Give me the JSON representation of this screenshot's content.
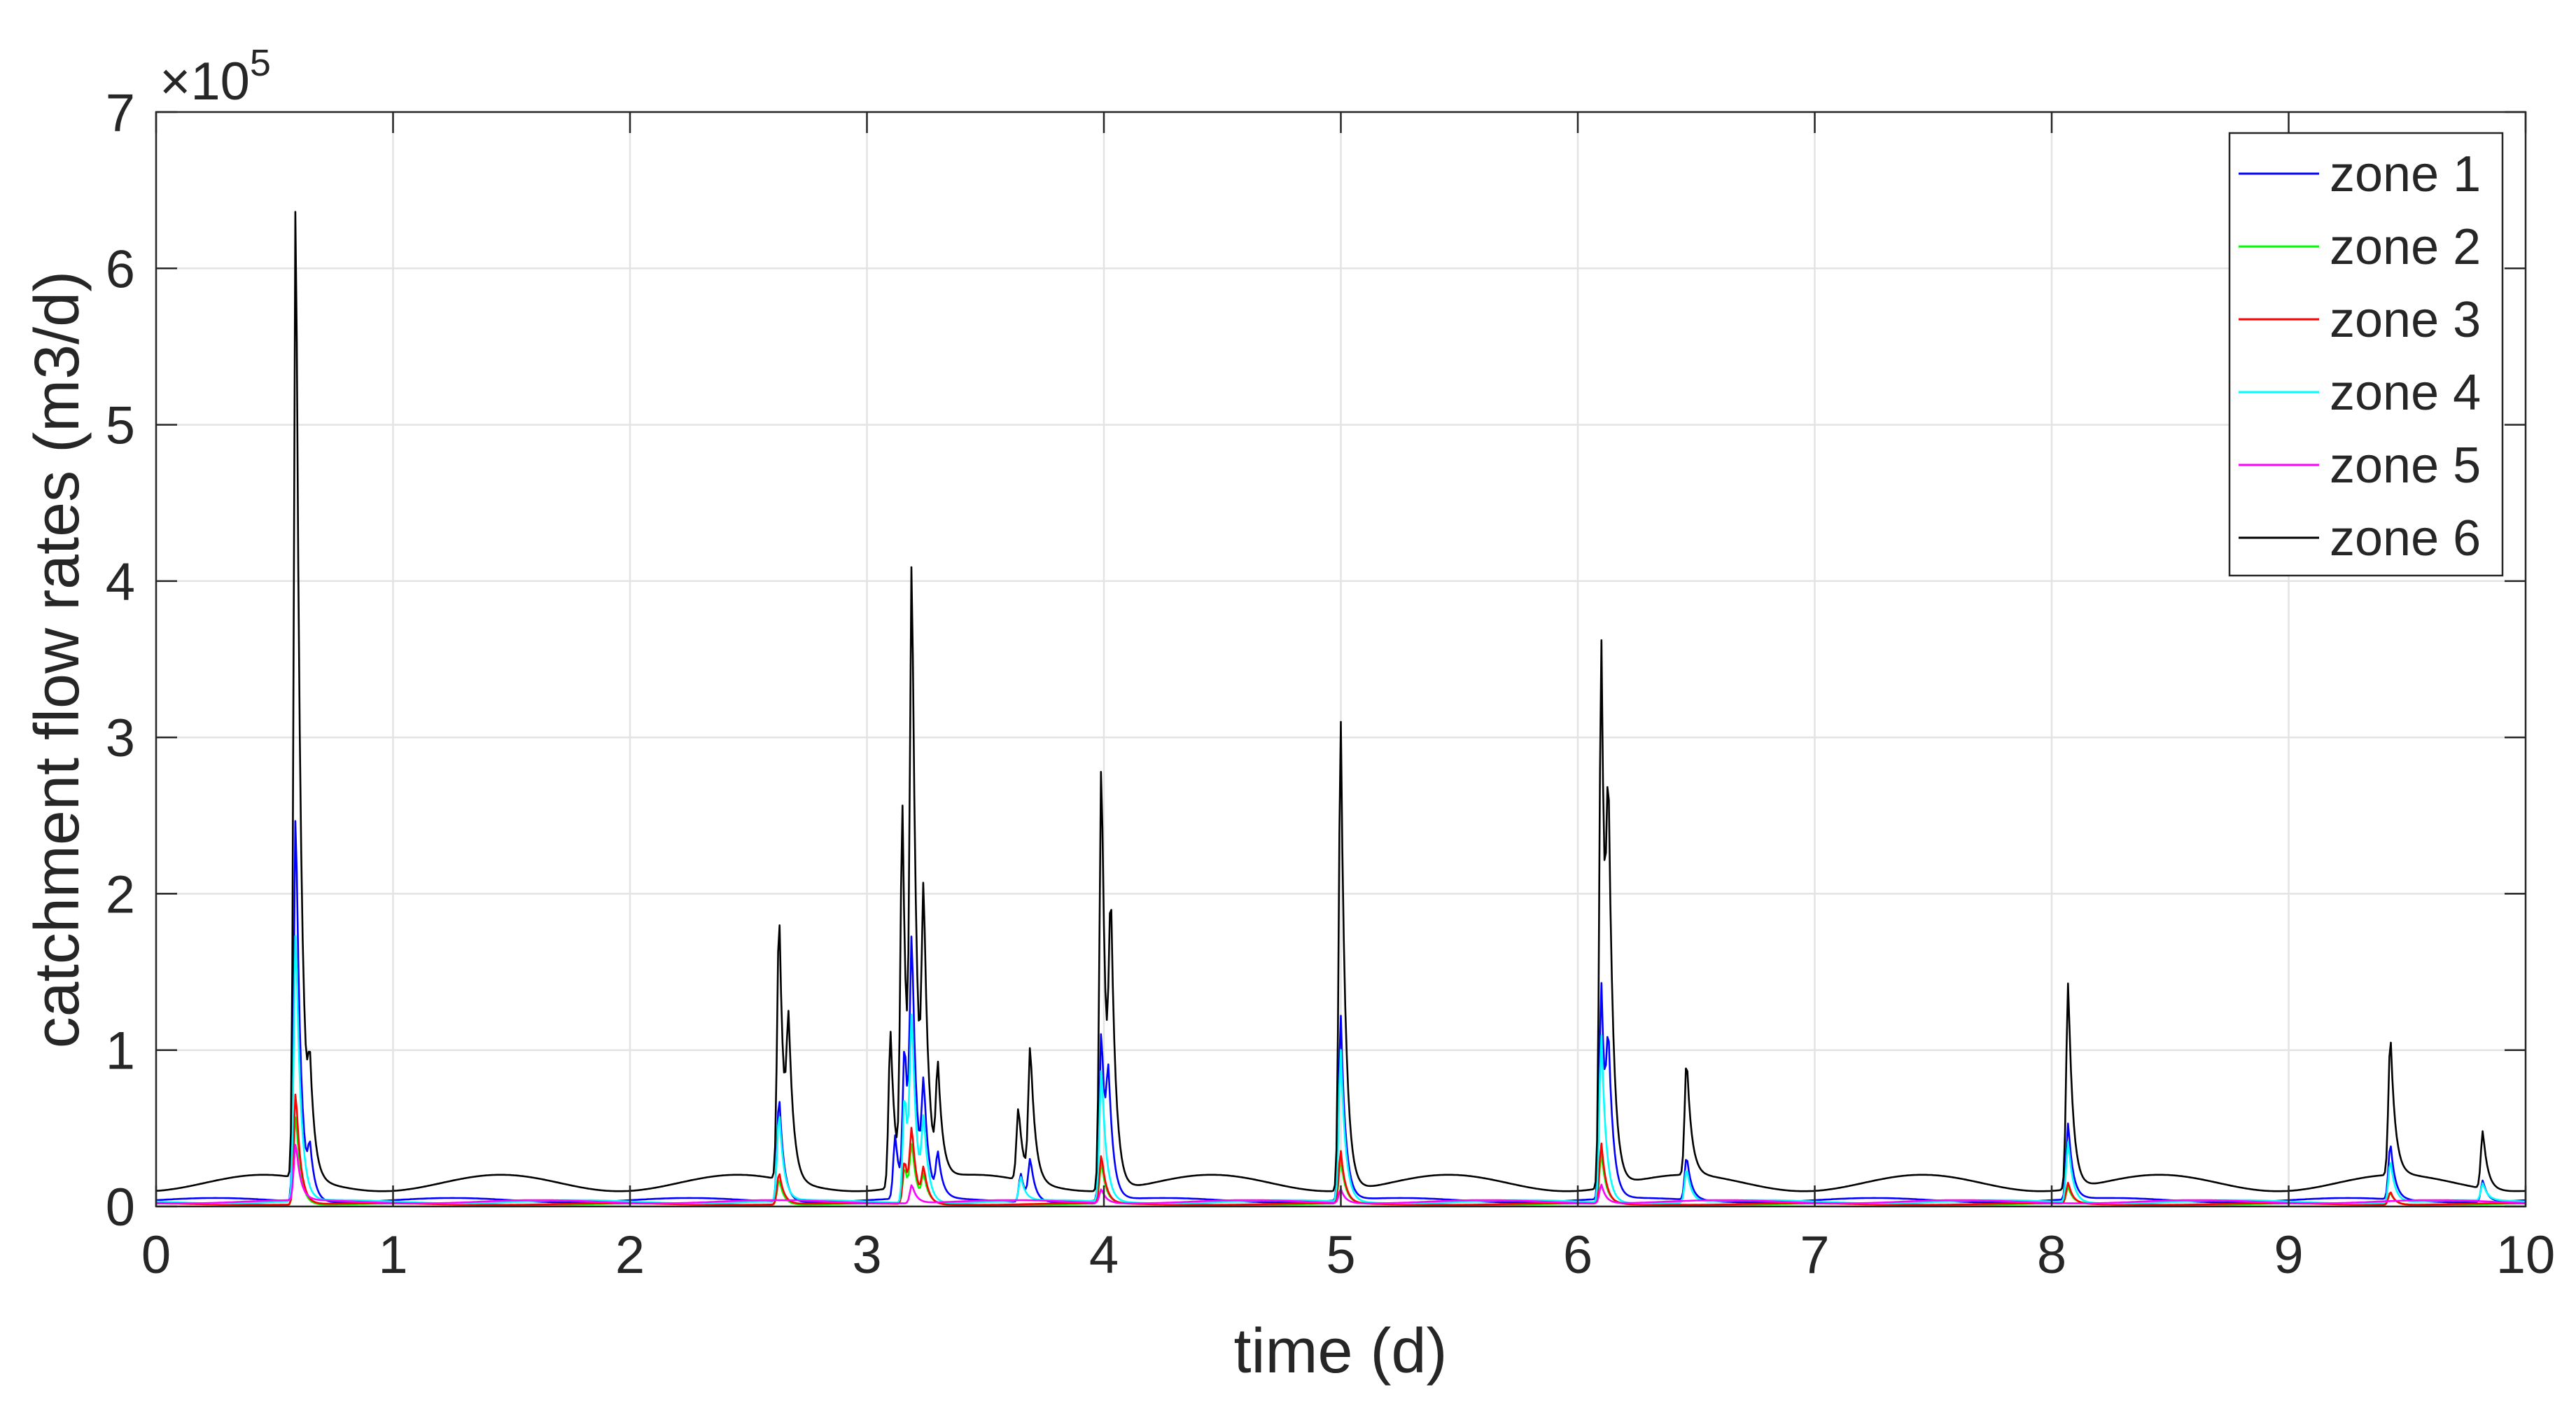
{
  "chart_data": {
    "type": "line",
    "xlabel": "time (d)",
    "ylabel": "catchment flow rates (m3/d)",
    "xlim": [
      0,
      10
    ],
    "ylim": [
      0,
      700000
    ],
    "xticks": [
      "0",
      "1",
      "2",
      "3",
      "4",
      "5",
      "6",
      "7",
      "8",
      "9",
      "10"
    ],
    "yticks": [
      "0",
      "1",
      "2",
      "3",
      "4",
      "5",
      "6",
      "7"
    ],
    "y_exponent": {
      "base": "×10",
      "power": "5"
    },
    "grid": true,
    "legend_position": "top-right",
    "colors": {
      "zone1": "#0000ff",
      "zone2": "#00ff00",
      "zone3": "#ff0000",
      "zone4": "#00ffff",
      "zone5": "#ff00ff",
      "zone6": "#000000"
    },
    "series": [
      {
        "name": "zone 1",
        "color": "#0000ff",
        "baseline": 4000,
        "peaks": [
          [
            0.59,
            258000
          ],
          [
            0.65,
            30000
          ],
          [
            2.63,
            72000
          ],
          [
            3.12,
            45000
          ],
          [
            3.16,
            100000
          ],
          [
            3.19,
            152000
          ],
          [
            3.24,
            68000
          ],
          [
            3.3,
            30000
          ],
          [
            3.65,
            22000
          ],
          [
            3.69,
            30000
          ],
          [
            3.99,
            115000
          ],
          [
            4.02,
            65000
          ],
          [
            5.0,
            122000
          ],
          [
            6.1,
            142000
          ],
          [
            6.13,
            80000
          ],
          [
            6.46,
            32000
          ],
          [
            8.07,
            53000
          ],
          [
            9.43,
            40000
          ],
          [
            9.82,
            18000
          ]
        ]
      },
      {
        "name": "zone 2",
        "color": "#00ff00",
        "baseline": 1500,
        "peaks": [
          [
            0.59,
            60000
          ],
          [
            2.63,
            18000
          ],
          [
            3.16,
            25000
          ],
          [
            3.19,
            35000
          ],
          [
            3.24,
            18000
          ],
          [
            3.99,
            28000
          ],
          [
            5.0,
            30000
          ],
          [
            6.1,
            33000
          ],
          [
            8.07,
            12000
          ],
          [
            9.43,
            9000
          ]
        ]
      },
      {
        "name": "zone 3",
        "color": "#ff0000",
        "baseline": 1500,
        "peaks": [
          [
            0.59,
            75000
          ],
          [
            2.63,
            22000
          ],
          [
            3.16,
            30000
          ],
          [
            3.19,
            45000
          ],
          [
            3.24,
            22000
          ],
          [
            3.99,
            33000
          ],
          [
            5.0,
            35000
          ],
          [
            6.1,
            40000
          ],
          [
            8.07,
            15000
          ],
          [
            9.43,
            10000
          ]
        ]
      },
      {
        "name": "zone 4",
        "color": "#00ffff",
        "baseline": 3000,
        "peaks": [
          [
            0.59,
            180000
          ],
          [
            2.63,
            60000
          ],
          [
            3.16,
            75000
          ],
          [
            3.19,
            110000
          ],
          [
            3.24,
            50000
          ],
          [
            3.65,
            18000
          ],
          [
            3.99,
            90000
          ],
          [
            5.0,
            100000
          ],
          [
            6.1,
            110000
          ],
          [
            6.46,
            25000
          ],
          [
            8.07,
            42000
          ],
          [
            9.43,
            30000
          ],
          [
            9.82,
            14000
          ]
        ]
      },
      {
        "name": "zone 5",
        "color": "#ff00ff",
        "baseline": 3000,
        "peaks": [
          [
            0.59,
            40000
          ],
          [
            3.19,
            15000
          ],
          [
            3.99,
            12000
          ],
          [
            5.0,
            12000
          ],
          [
            6.1,
            15000
          ]
        ]
      },
      {
        "name": "zone 6",
        "color": "#000000",
        "baseline": 15000,
        "peaks": [
          [
            0.59,
            660000
          ],
          [
            0.65,
            65000
          ],
          [
            2.63,
            188000
          ],
          [
            2.67,
            100000
          ],
          [
            3.1,
            115000
          ],
          [
            3.15,
            250000
          ],
          [
            3.19,
            388000
          ],
          [
            3.24,
            175000
          ],
          [
            3.3,
            80000
          ],
          [
            3.64,
            62000
          ],
          [
            3.69,
            100000
          ],
          [
            3.99,
            295000
          ],
          [
            4.03,
            168000
          ],
          [
            5.0,
            315000
          ],
          [
            6.1,
            365000
          ],
          [
            6.13,
            200000
          ],
          [
            6.46,
            90000
          ],
          [
            8.07,
            148000
          ],
          [
            9.43,
            105000
          ],
          [
            9.82,
            52000
          ]
        ]
      }
    ]
  }
}
